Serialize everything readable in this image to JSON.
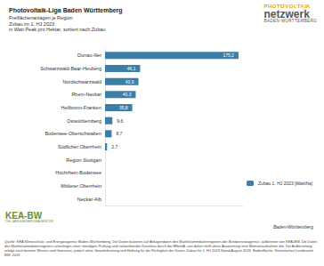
{
  "chart_data": {
    "type": "bar",
    "orientation": "horizontal",
    "title": "Photovoltaik-Liga Baden Württemberg",
    "subtitle": [
      "Freiflächenanlagen je Region",
      "Zubau im 1. HJ 2023",
      "in Watt Peak pro Hektar, sortiert nach Zubau"
    ],
    "categories": [
      "Donau-Iller",
      "Schwarzwald-Baar-Heuberg",
      "Nordschwarzwald",
      "Rhein-Neckar",
      "Heilbronn-Franken",
      "Ostwürttemberg",
      "Bodensee-Oberschwaben",
      "Südlicher Oberrhein",
      "Region Stuttgart",
      "Hochrhein-Bodensee",
      "Mittlerer Oberrhein",
      "Neckar-Alb"
    ],
    "series": [
      {
        "name": "Zubau 1. HJ 2023 [Watt/ha]",
        "color": "#3d7ea6",
        "values": [
          175.2,
          46.1,
          43.9,
          40.3,
          35.8,
          9.6,
          8.7,
          2.7,
          0,
          0,
          0,
          0
        ],
        "value_labels": [
          "175,2",
          "46,1",
          "43,9",
          "40,3",
          "35,8",
          "9,6",
          "8,7",
          "2,7",
          null,
          null,
          null,
          null
        ]
      }
    ],
    "xlim": [
      0,
      180
    ],
    "xticks": [
      0,
      180
    ],
    "grid": false,
    "legend": "lower right",
    "data_labels": true,
    "tick_labels": "y"
  },
  "logos": {
    "photovoltaik": [
      "PHOTOVOLTAIK",
      "netzwerk",
      "BADEN-WÜRTTEMBERG"
    ],
    "kea": [
      "KEA-BW",
      "DIE LANDESENERGIEAGENTUR"
    ],
    "land": "Baden-Württemberg"
  },
  "footnote": "Quelle: KEA Klimaschutz- und Energieagentur Baden-Württemberg. Die Daten basieren auf Anlagendaten des Marktstammdatenregisters der Bundesnetzagentur, aufbereitet von KEA-BW. Die Daten des Marktstammdatenregisters unterliegen einer ständigen Prüfung und rückwirkender Korrektur durch die BNetzA, von daher stellt diese Auswertung eine Momentaufnahme dar. Die Aufbereitung erfolgt nach bestem Wissen und Gewissen, jedoch ohne Gewährleistung und Haftung für die Richtigkeit der Daten. Zubau für 1. HJ 2023 Stand August 2023. Bodenfläche: Statistisches Landesamt BW, 2023"
}
